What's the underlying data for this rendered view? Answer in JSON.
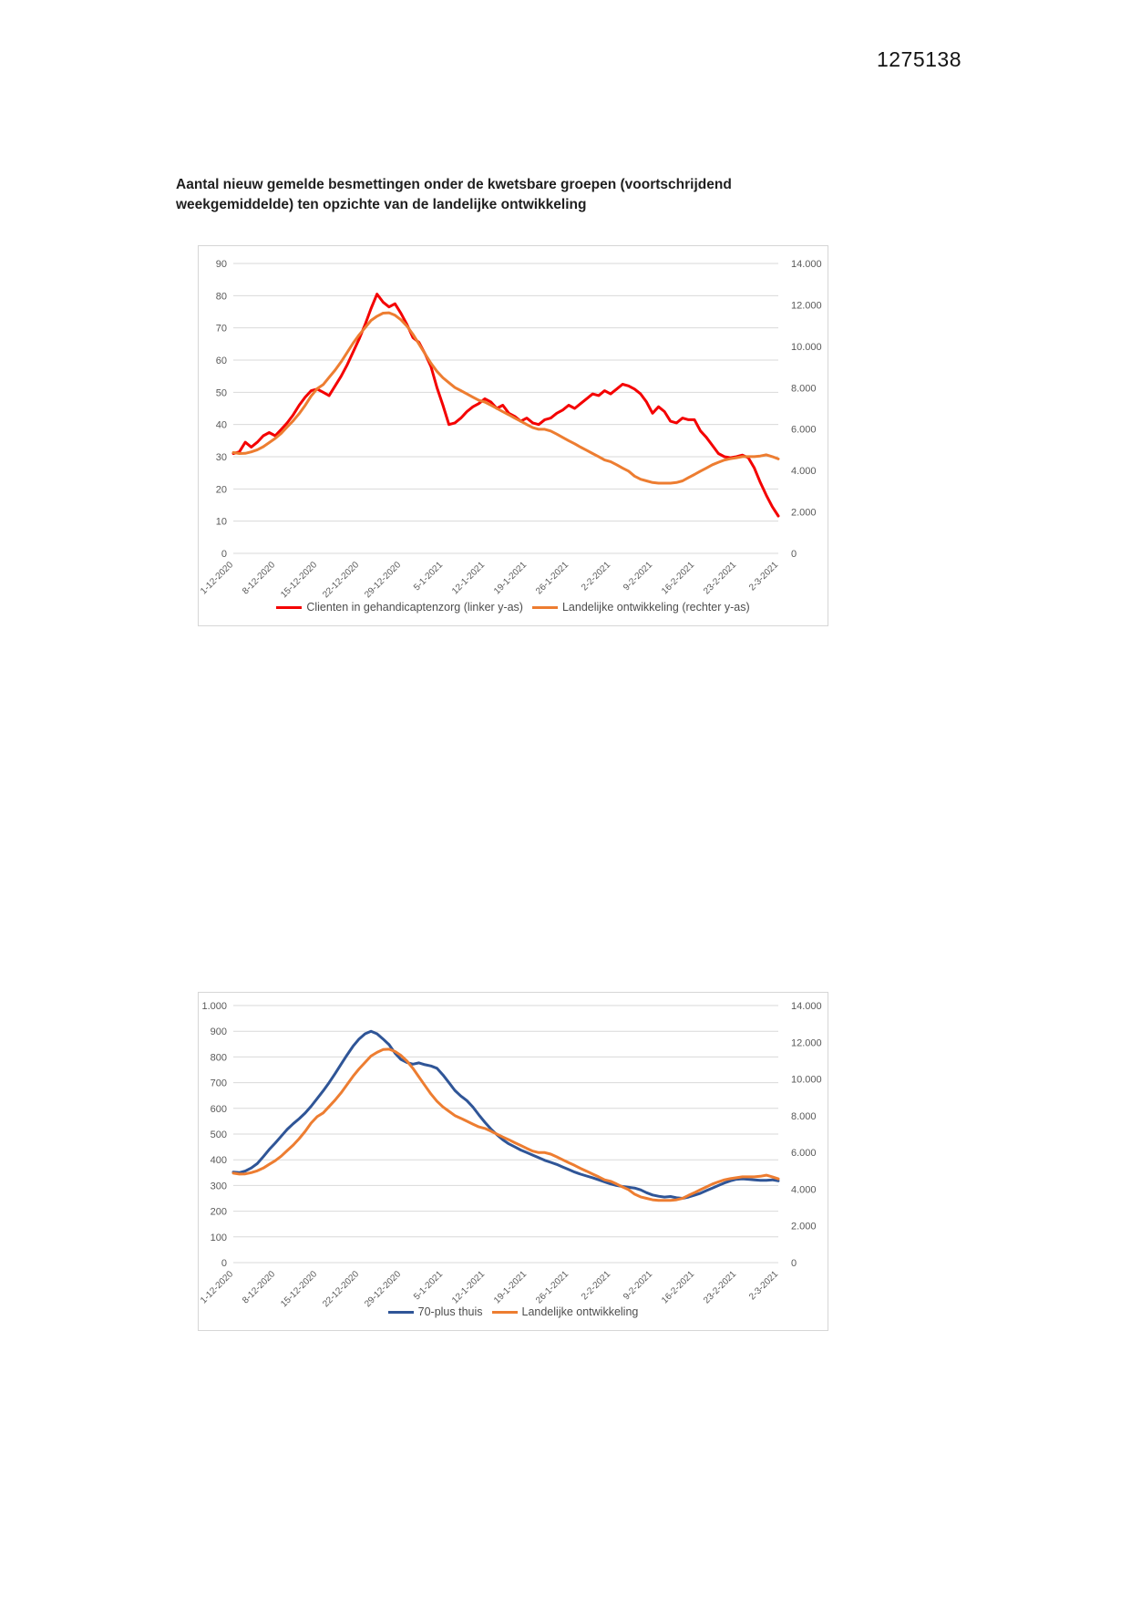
{
  "page": {
    "number": "1275138",
    "title": "Aantal nieuw gemelde besmettingen onder de kwetsbare groepen (voortschrijdend weekgemiddelde) ten opzichte van de landelijke ontwikkeling"
  },
  "colors": {
    "red_series": "#f40000",
    "orange_series": "#ed7d31",
    "blue_series": "#2f5597",
    "gridline": "#d9d9d9",
    "axis_text": "#595959",
    "legend_text": "#4d4d4d"
  },
  "chart_data": [
    {
      "type": "line",
      "grid": "horizontal",
      "legend_position": "bottom",
      "x_tick_labels": [
        "1-12-2020",
        "8-12-2020",
        "15-12-2020",
        "22-12-2020",
        "29-12-2020",
        "5-1-2021",
        "12-1-2021",
        "19-1-2021",
        "26-1-2021",
        "2-2-2021",
        "9-2-2021",
        "16-2-2021",
        "23-2-2021",
        "2-3-2021"
      ],
      "x_tick_indices": [
        0,
        7,
        14,
        21,
        28,
        35,
        42,
        49,
        56,
        63,
        70,
        77,
        84,
        91
      ],
      "left_axis": {
        "min": 0,
        "max": 90,
        "tick_labels": [
          "90",
          "80",
          "70",
          "60",
          "50",
          "40",
          "30",
          "20",
          "10",
          "0"
        ]
      },
      "right_axis": {
        "min": 0,
        "max": 14000,
        "tick_labels": [
          "14.000",
          "12.000",
          "10.000",
          "8.000",
          "6.000",
          "4.000",
          "2.000",
          "0"
        ]
      },
      "series": [
        {
          "name": "Clienten in gehandicaptenzorg (linker y-as)",
          "axis": "left",
          "color": "#f40000",
          "values": [
            31,
            31.5,
            34.5,
            33,
            34.5,
            36.5,
            37.5,
            36.5,
            38.5,
            40.5,
            43,
            46,
            48.5,
            50.5,
            51,
            50,
            49,
            52,
            55,
            58.5,
            62.5,
            66.5,
            71,
            76,
            80.5,
            78,
            76.5,
            77.5,
            74.5,
            71,
            67,
            65.5,
            62,
            58,
            51.5,
            46,
            40,
            40.5,
            42,
            44,
            45.5,
            46.5,
            48,
            47,
            45,
            46,
            43.5,
            42.5,
            41,
            42,
            40.5,
            40,
            41.5,
            42,
            43.5,
            44.5,
            46,
            45,
            46.5,
            48,
            49.5,
            49,
            50.5,
            49.5,
            51,
            52.5,
            52,
            51,
            49.5,
            47,
            43.5,
            45.5,
            44,
            41,
            40.5,
            42,
            41.5,
            41.5,
            38,
            36,
            33.5,
            31,
            30,
            29.7,
            30,
            30.5,
            29.7,
            26.5,
            22,
            18,
            14.5,
            11.6
          ]
        },
        {
          "name": "Landelijke ontwikkeling (rechter y-as)",
          "axis": "right",
          "color": "#ed7d31",
          "values": [
            4870,
            4820,
            4830,
            4900,
            5000,
            5150,
            5350,
            5550,
            5800,
            6100,
            6400,
            6750,
            7150,
            7600,
            7950,
            8150,
            8500,
            8850,
            9250,
            9700,
            10150,
            10550,
            10900,
            11250,
            11450,
            11600,
            11620,
            11500,
            11280,
            10970,
            10580,
            10110,
            9640,
            9180,
            8790,
            8480,
            8240,
            8010,
            7860,
            7700,
            7540,
            7390,
            7310,
            7160,
            7000,
            6840,
            6690,
            6530,
            6380,
            6220,
            6070,
            5990,
            5990,
            5910,
            5760,
            5600,
            5440,
            5290,
            5130,
            4980,
            4820,
            4670,
            4510,
            4430,
            4280,
            4120,
            3970,
            3730,
            3580,
            3500,
            3420,
            3390,
            3390,
            3390,
            3420,
            3500,
            3660,
            3810,
            3970,
            4120,
            4280,
            4400,
            4510,
            4570,
            4620,
            4670,
            4670,
            4670,
            4700,
            4760,
            4670,
            4560
          ]
        }
      ]
    },
    {
      "type": "line",
      "grid": "horizontal",
      "legend_position": "bottom",
      "x_tick_labels": [
        "1-12-2020",
        "8-12-2020",
        "15-12-2020",
        "22-12-2020",
        "29-12-2020",
        "5-1-2021",
        "12-1-2021",
        "19-1-2021",
        "26-1-2021",
        "2-2-2021",
        "9-2-2021",
        "16-2-2021",
        "23-2-2021",
        "2-3-2021"
      ],
      "x_tick_indices": [
        0,
        7,
        14,
        21,
        28,
        35,
        42,
        49,
        56,
        63,
        70,
        77,
        84,
        91
      ],
      "left_axis": {
        "min": 0,
        "max": 1000,
        "tick_labels": [
          "1.000",
          "900",
          "800",
          "700",
          "600",
          "500",
          "400",
          "300",
          "200",
          "100",
          "0"
        ]
      },
      "right_axis": {
        "min": 0,
        "max": 14000,
        "tick_labels": [
          "14.000",
          "12.000",
          "10.000",
          "8.000",
          "6.000",
          "4.000",
          "2.000",
          "0"
        ]
      },
      "series": [
        {
          "name": "70-plus thuis",
          "axis": "left",
          "color": "#2f5597",
          "values": [
            352,
            350,
            356,
            368,
            385,
            412,
            440,
            465,
            492,
            518,
            540,
            560,
            582,
            608,
            638,
            668,
            700,
            735,
            772,
            808,
            842,
            870,
            890,
            900,
            890,
            870,
            848,
            815,
            790,
            778,
            772,
            777,
            770,
            765,
            756,
            730,
            700,
            670,
            648,
            630,
            605,
            575,
            546,
            520,
            498,
            478,
            462,
            450,
            438,
            428,
            418,
            408,
            398,
            390,
            382,
            372,
            362,
            352,
            344,
            337,
            330,
            322,
            314,
            306,
            300,
            296,
            293,
            290,
            283,
            272,
            263,
            258,
            255,
            257,
            252,
            250,
            255,
            262,
            270,
            280,
            290,
            300,
            310,
            318,
            324,
            326,
            324,
            322,
            320,
            320,
            322,
            318
          ]
        },
        {
          "name": "Landelijke ontwikkeling",
          "axis": "right",
          "color": "#ed7d31",
          "values": [
            4870,
            4820,
            4830,
            4900,
            5000,
            5150,
            5350,
            5550,
            5800,
            6100,
            6400,
            6750,
            7150,
            7600,
            7950,
            8150,
            8500,
            8850,
            9250,
            9700,
            10150,
            10550,
            10900,
            11250,
            11450,
            11600,
            11620,
            11500,
            11280,
            10970,
            10580,
            10110,
            9640,
            9180,
            8790,
            8480,
            8240,
            8010,
            7860,
            7700,
            7540,
            7390,
            7310,
            7160,
            7000,
            6840,
            6690,
            6530,
            6380,
            6220,
            6070,
            5990,
            5990,
            5910,
            5760,
            5600,
            5440,
            5290,
            5130,
            4980,
            4820,
            4670,
            4510,
            4430,
            4280,
            4120,
            3970,
            3730,
            3580,
            3500,
            3420,
            3390,
            3390,
            3390,
            3420,
            3500,
            3660,
            3810,
            3970,
            4120,
            4280,
            4400,
            4510,
            4570,
            4620,
            4670,
            4670,
            4670,
            4700,
            4760,
            4670,
            4560
          ]
        }
      ]
    }
  ]
}
